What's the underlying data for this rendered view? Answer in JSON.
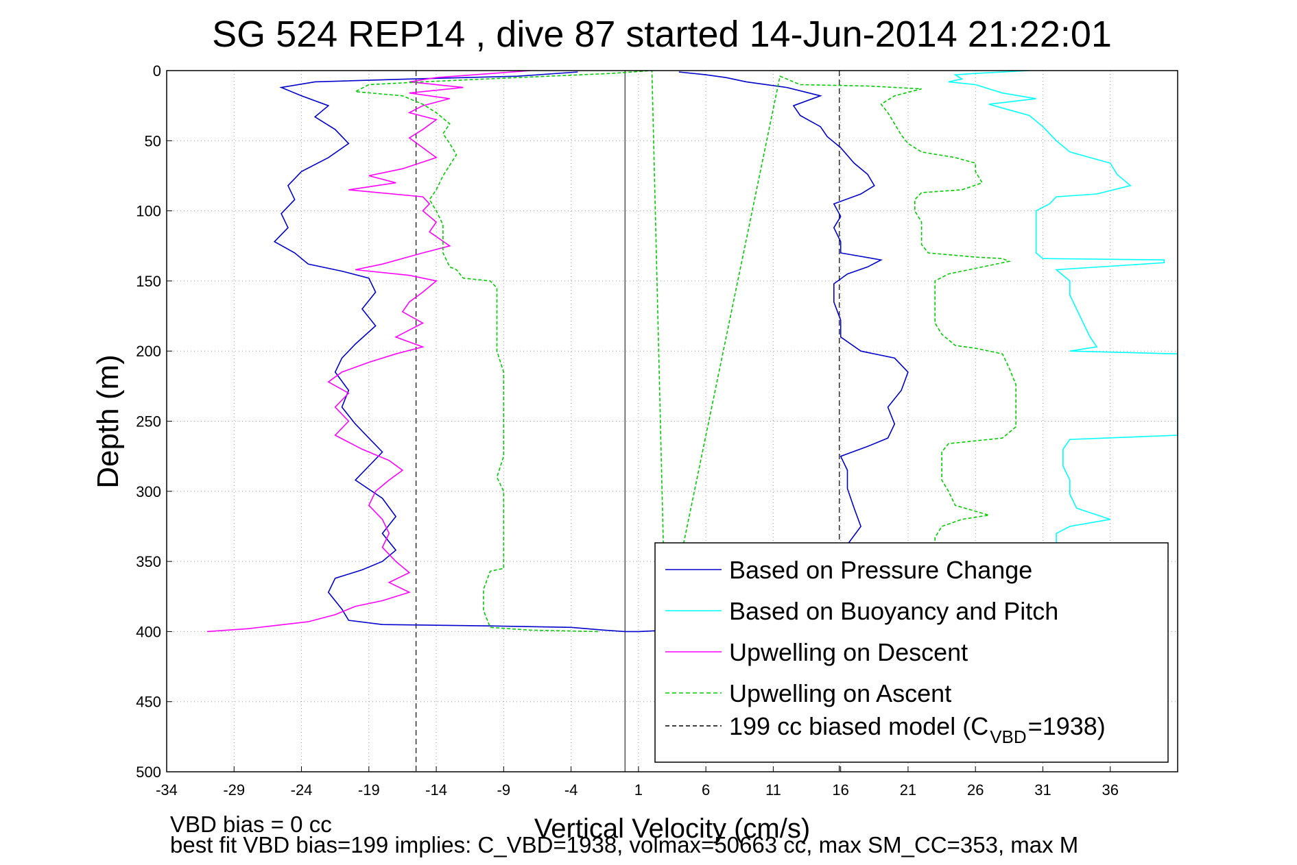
{
  "chart_data": {
    "type": "line",
    "title": "SG 524   REP14  , dive 87 started 14-Jun-2014 21:22:01",
    "xlabel": "Vertical Velocity (cm/s)",
    "ylabel": "Depth (m)",
    "xlim": [
      -34,
      41
    ],
    "ylim": [
      0,
      500
    ],
    "y_reversed": true,
    "grid": true,
    "legend_position": "bottom-right",
    "x_ticks": [
      -34,
      -29,
      -24,
      -19,
      -14,
      -9,
      -4,
      1,
      6,
      11,
      16,
      21,
      26,
      31,
      36
    ],
    "y_ticks": [
      0,
      50,
      100,
      150,
      200,
      250,
      300,
      350,
      400,
      450,
      500
    ],
    "model_lines": [
      {
        "x": -15.5,
        "y": [
          0,
          500
        ]
      },
      {
        "x": 15.9,
        "y": [
          0,
          500
        ]
      }
    ],
    "series": [
      {
        "name": "Based on Pressure Change",
        "color": "#0000cc",
        "style": "solid",
        "points": [
          [
            -3.5,
            1
          ],
          [
            -8,
            4
          ],
          [
            -16,
            6
          ],
          [
            -23,
            8
          ],
          [
            -25.5,
            12
          ],
          [
            -24,
            18
          ],
          [
            -22,
            25
          ],
          [
            -23,
            33
          ],
          [
            -21.5,
            42
          ],
          [
            -20.5,
            52
          ],
          [
            -22,
            62
          ],
          [
            -24,
            72
          ],
          [
            -25,
            82
          ],
          [
            -24.5,
            92
          ],
          [
            -25.5,
            102
          ],
          [
            -25,
            112
          ],
          [
            -26,
            122
          ],
          [
            -24.5,
            130
          ],
          [
            -23.5,
            138
          ],
          [
            -21,
            143
          ],
          [
            -19,
            148
          ],
          [
            -18.5,
            158
          ],
          [
            -19.5,
            170
          ],
          [
            -18.5,
            182
          ],
          [
            -20,
            195
          ],
          [
            -21,
            205
          ],
          [
            -21.5,
            215
          ],
          [
            -20.5,
            228
          ],
          [
            -21,
            240
          ],
          [
            -20,
            252
          ],
          [
            -19,
            262
          ],
          [
            -18,
            272
          ],
          [
            -19,
            282
          ],
          [
            -20,
            292
          ],
          [
            -18,
            305
          ],
          [
            -17,
            318
          ],
          [
            -18,
            330
          ],
          [
            -17,
            342
          ],
          [
            -18,
            350
          ],
          [
            -19.5,
            356
          ],
          [
            -21.5,
            362
          ],
          [
            -22,
            372
          ],
          [
            -21,
            384
          ],
          [
            -20.5,
            392
          ],
          [
            -18,
            395
          ],
          [
            -10,
            396
          ],
          [
            -4,
            397
          ],
          [
            -1.5,
            399
          ],
          [
            0,
            400
          ],
          [
            1,
            400
          ],
          [
            5.5,
            398
          ],
          [
            9,
            396
          ],
          [
            14,
            390
          ],
          [
            15,
            382
          ],
          [
            16,
            374
          ],
          [
            17.5,
            362
          ],
          [
            18,
            350
          ],
          [
            16.5,
            338
          ],
          [
            17.5,
            325
          ],
          [
            17,
            312
          ],
          [
            16.5,
            298
          ],
          [
            16.5,
            285
          ],
          [
            16,
            275
          ],
          [
            18,
            268
          ],
          [
            19.5,
            262
          ],
          [
            20,
            252
          ],
          [
            19.5,
            240
          ],
          [
            20.5,
            228
          ],
          [
            21,
            215
          ],
          [
            20,
            205
          ],
          [
            17.5,
            200
          ],
          [
            16,
            190
          ],
          [
            16,
            178
          ],
          [
            15.5,
            165
          ],
          [
            15.5,
            152
          ],
          [
            16.5,
            145
          ],
          [
            18,
            140
          ],
          [
            19,
            135
          ],
          [
            16,
            130
          ],
          [
            16,
            122
          ],
          [
            15.5,
            112
          ],
          [
            16,
            104
          ],
          [
            15.5,
            95
          ],
          [
            17.5,
            88
          ],
          [
            18.5,
            82
          ],
          [
            18,
            74
          ],
          [
            17,
            66
          ],
          [
            16,
            55
          ],
          [
            15,
            47
          ],
          [
            14.5,
            40
          ],
          [
            13,
            32
          ],
          [
            12.5,
            25
          ],
          [
            14.5,
            18
          ],
          [
            12,
            12
          ],
          [
            9,
            8
          ],
          [
            7.5,
            5
          ],
          [
            6,
            3
          ],
          [
            4,
            1
          ]
        ]
      },
      {
        "name": "Based on Buoyancy and Pitch",
        "color": "#00ffff",
        "style": "solid",
        "points": [
          [
            30,
            0
          ],
          [
            26,
            2
          ],
          [
            24.5,
            3
          ],
          [
            25,
            6
          ],
          [
            24,
            8
          ],
          [
            26,
            10
          ],
          [
            27,
            13
          ],
          [
            28,
            16
          ],
          [
            30.5,
            20
          ],
          [
            27,
            24
          ],
          [
            28.5,
            28
          ],
          [
            30,
            32
          ],
          [
            31,
            40
          ],
          [
            32,
            50
          ],
          [
            33,
            58
          ],
          [
            36,
            66
          ],
          [
            36.5,
            74
          ],
          [
            37.5,
            82
          ],
          [
            35,
            88
          ],
          [
            32,
            90
          ],
          [
            31.5,
            95
          ],
          [
            30.5,
            100
          ],
          [
            30.5,
            110
          ],
          [
            30.5,
            122
          ],
          [
            30.5,
            130
          ],
          [
            31,
            134
          ],
          [
            40,
            135
          ],
          [
            40,
            137
          ],
          [
            32,
            142
          ],
          [
            33,
            150
          ],
          [
            33,
            160
          ],
          [
            33.5,
            170
          ],
          [
            34,
            180
          ],
          [
            34.5,
            190
          ],
          [
            35,
            197
          ],
          [
            33,
            200
          ],
          [
            41,
            202
          ],
          [
            41,
            215
          ],
          [
            41,
            225
          ],
          [
            41,
            238
          ],
          [
            41,
            250
          ],
          [
            41,
            260
          ],
          [
            33,
            263
          ],
          [
            32.5,
            270
          ],
          [
            32.5,
            282
          ],
          [
            33,
            292
          ],
          [
            33,
            302
          ],
          [
            33.5,
            312
          ],
          [
            36,
            320
          ],
          [
            33,
            325
          ],
          [
            32,
            330
          ],
          [
            32,
            338
          ],
          [
            33.5,
            345
          ],
          [
            36,
            349
          ]
        ]
      },
      {
        "name": "Upwelling on Descent",
        "color": "#ff00ff",
        "style": "solid",
        "points": [
          [
            -7,
            0
          ],
          [
            -14,
            5
          ],
          [
            -16,
            8
          ],
          [
            -12,
            12
          ],
          [
            -16,
            16
          ],
          [
            -13,
            20
          ],
          [
            -15,
            25
          ],
          [
            -16,
            30
          ],
          [
            -14,
            35
          ],
          [
            -15,
            42
          ],
          [
            -16,
            48
          ],
          [
            -15,
            55
          ],
          [
            -14,
            62
          ],
          [
            -16.5,
            70
          ],
          [
            -19,
            75
          ],
          [
            -17,
            80
          ],
          [
            -20.5,
            85
          ],
          [
            -15,
            90
          ],
          [
            -14.5,
            95
          ],
          [
            -15,
            100
          ],
          [
            -14,
            108
          ],
          [
            -14.5,
            115
          ],
          [
            -13,
            125
          ],
          [
            -15,
            130
          ],
          [
            -18,
            138
          ],
          [
            -20,
            142
          ],
          [
            -16,
            146
          ],
          [
            -14,
            150
          ],
          [
            -15,
            158
          ],
          [
            -16,
            165
          ],
          [
            -16.5,
            172
          ],
          [
            -15,
            180
          ],
          [
            -17,
            190
          ],
          [
            -15,
            197
          ],
          [
            -17,
            202
          ],
          [
            -19,
            208
          ],
          [
            -21,
            215
          ],
          [
            -22,
            222
          ],
          [
            -20.5,
            230
          ],
          [
            -21.5,
            240
          ],
          [
            -20.5,
            250
          ],
          [
            -21.5,
            260
          ],
          [
            -19.5,
            270
          ],
          [
            -17.5,
            278
          ],
          [
            -16.5,
            285
          ],
          [
            -17.5,
            292
          ],
          [
            -18.5,
            300
          ],
          [
            -19,
            310
          ],
          [
            -18,
            320
          ],
          [
            -17.5,
            330
          ],
          [
            -18,
            340
          ],
          [
            -17,
            350
          ],
          [
            -16,
            358
          ],
          [
            -17.5,
            365
          ],
          [
            -16,
            372
          ],
          [
            -18,
            378
          ],
          [
            -20,
            382
          ],
          [
            -21.5,
            388
          ],
          [
            -23.5,
            393
          ],
          [
            -28,
            398
          ],
          [
            -31,
            400
          ]
        ]
      },
      {
        "name": "Upwelling on Ascent",
        "color": "#00cc00",
        "style": "dashed",
        "points": [
          [
            -2,
            400
          ],
          [
            -7,
            399
          ],
          [
            -10,
            397
          ],
          [
            -10.5,
            385
          ],
          [
            -10.5,
            370
          ],
          [
            -10,
            357
          ],
          [
            -9,
            355
          ],
          [
            -9,
            340
          ],
          [
            -9,
            320
          ],
          [
            -9,
            300
          ],
          [
            -9.5,
            290
          ],
          [
            -9,
            275
          ],
          [
            -9,
            260
          ],
          [
            -9,
            240
          ],
          [
            -9,
            215
          ],
          [
            -9.5,
            200
          ],
          [
            -9.5,
            185
          ],
          [
            -9.5,
            165
          ],
          [
            -9.5,
            155
          ],
          [
            -10,
            150
          ],
          [
            -12,
            148
          ],
          [
            -12.5,
            142
          ],
          [
            -13,
            140
          ],
          [
            -13.5,
            130
          ],
          [
            -13.5,
            110
          ],
          [
            -14,
            100
          ],
          [
            -14.5,
            92
          ],
          [
            -14,
            85
          ],
          [
            -13.5,
            75
          ],
          [
            -12.5,
            60
          ],
          [
            -13,
            52
          ],
          [
            -13.5,
            45
          ],
          [
            -13,
            38
          ],
          [
            -14,
            30
          ],
          [
            -15,
            24
          ],
          [
            -16.5,
            18
          ],
          [
            -20,
            15
          ],
          [
            -19,
            10
          ],
          [
            -15,
            8
          ],
          [
            -8,
            5
          ],
          [
            -1,
            2
          ],
          [
            2,
            0
          ],
          [
            3,
            400
          ],
          [
            11.5,
            4
          ],
          [
            12,
            6
          ],
          [
            13,
            10
          ],
          [
            18,
            11
          ],
          [
            22,
            13
          ],
          [
            20,
            18
          ],
          [
            19,
            24
          ],
          [
            19.5,
            30
          ],
          [
            20,
            38
          ],
          [
            20.5,
            46
          ],
          [
            21,
            52
          ],
          [
            22,
            58
          ],
          [
            24.5,
            62
          ],
          [
            26,
            66
          ],
          [
            26,
            72
          ],
          [
            26.5,
            80
          ],
          [
            25,
            85
          ],
          [
            22,
            87
          ],
          [
            21.5,
            92
          ],
          [
            21.5,
            100
          ],
          [
            22,
            108
          ],
          [
            22,
            116
          ],
          [
            22,
            124
          ],
          [
            22.5,
            130
          ],
          [
            26,
            133
          ],
          [
            28,
            134
          ],
          [
            28.5,
            136
          ],
          [
            24,
            145
          ],
          [
            23,
            150
          ],
          [
            23,
            160
          ],
          [
            23,
            170
          ],
          [
            23,
            180
          ],
          [
            23.5,
            188
          ],
          [
            24.5,
            196
          ],
          [
            26,
            198
          ],
          [
            27,
            200
          ],
          [
            28,
            202
          ],
          [
            28.5,
            212
          ],
          [
            29,
            224
          ],
          [
            29,
            234
          ],
          [
            29,
            244
          ],
          [
            29,
            254
          ],
          [
            28,
            262
          ],
          [
            24,
            266
          ],
          [
            23.5,
            272
          ],
          [
            23.5,
            282
          ],
          [
            23.5,
            292
          ],
          [
            24,
            300
          ],
          [
            24.5,
            310
          ],
          [
            27,
            317
          ],
          [
            25,
            320
          ],
          [
            23.5,
            325
          ],
          [
            23,
            333
          ],
          [
            23,
            343
          ]
        ]
      },
      {
        "name": "199 cc biased model (C",
        "color": "#000000",
        "style": "dashed",
        "points": [
          [
            -15.5,
            0
          ],
          [
            -15.5,
            500
          ]
        ]
      }
    ],
    "legend_sub": "VBD",
    "legend_tail": "=1938)",
    "annotations": [
      "VBD bias = 0 cc",
      "best fit VBD bias=199 implies: C_VBD=1938, volmax=50663 cc, max SM_CC=353, max M"
    ]
  }
}
